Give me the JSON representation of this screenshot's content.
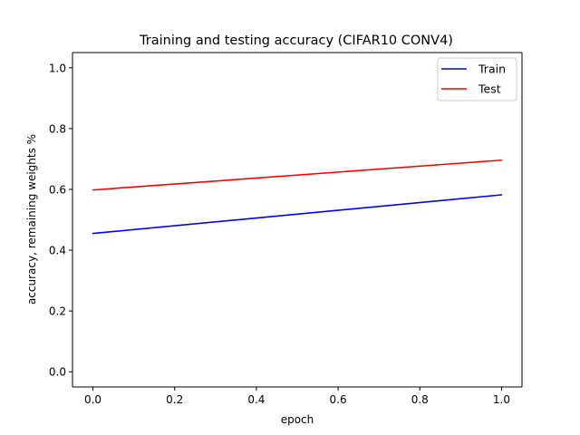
{
  "chart_data": {
    "type": "line",
    "title": "Training and testing accuracy (CIFAR10 CONV4)",
    "xlabel": "epoch",
    "ylabel": "accuracy, remaining weights %",
    "x": [
      0.0,
      1.0
    ],
    "series": [
      {
        "name": "Train",
        "color": "#0000ff",
        "values": [
          0.455,
          0.582
        ]
      },
      {
        "name": "Test",
        "color": "#ff0000",
        "values": [
          0.598,
          0.696
        ]
      }
    ],
    "xlim": [
      -0.05,
      1.05
    ],
    "ylim": [
      -0.05,
      1.05
    ],
    "xticks": [
      0.0,
      0.2,
      0.4,
      0.6,
      0.8,
      1.0
    ],
    "xtick_labels": [
      "0.0",
      "0.2",
      "0.4",
      "0.6",
      "0.8",
      "1.0"
    ],
    "yticks": [
      0.0,
      0.2,
      0.4,
      0.6,
      0.8,
      1.0
    ],
    "ytick_labels": [
      "0.0",
      "0.2",
      "0.4",
      "0.6",
      "0.8",
      "1.0"
    ],
    "grid": false,
    "legend_position": "top-right"
  }
}
